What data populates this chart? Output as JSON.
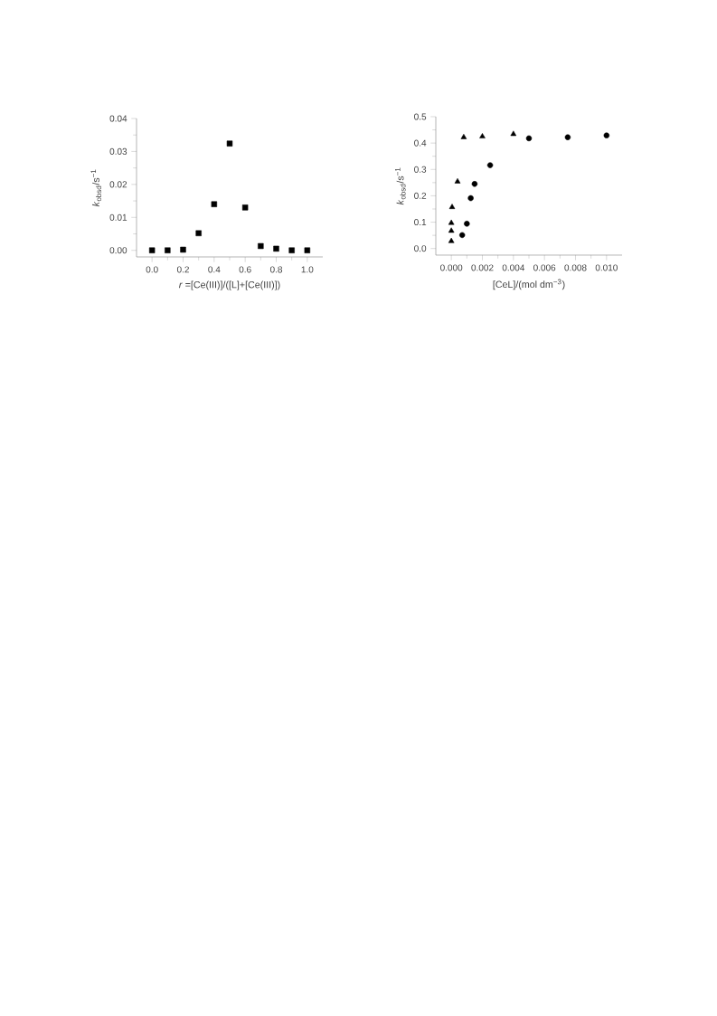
{
  "chart_data": [
    {
      "type": "scatter",
      "xlabel": "*r* =[Ce(III)]/([L]+[Ce(III)])",
      "ylabel": "*k*$_{obsd}$/s$^{−1}$",
      "xlim": [
        -0.1,
        1.1
      ],
      "ylim": [
        -0.002,
        0.04
      ],
      "xticks": [
        {
          "value": 0,
          "label": "0.0"
        },
        {
          "value": 0.2,
          "label": "0.2"
        },
        {
          "value": 0.4,
          "label": "0.4"
        },
        {
          "value": 0.6,
          "label": "0.6"
        },
        {
          "value": 0.8,
          "label": "0.8"
        },
        {
          "value": 1,
          "label": "1.0"
        }
      ],
      "yticks": [
        {
          "value": 0,
          "label": "0.00"
        },
        {
          "value": 0.01,
          "label": "0.01"
        },
        {
          "value": 0.02,
          "label": "0.02"
        },
        {
          "value": 0.03,
          "label": "0.03"
        },
        {
          "value": 0.04,
          "label": "0.04"
        }
      ],
      "series": [
        {
          "color": "#000000",
          "marker": "square",
          "x": [
            0,
            0.1,
            0.2,
            0.3,
            0.4,
            0.5,
            0.6,
            0.7,
            0.8,
            0.9,
            1.0
          ],
          "values": [
            0,
            0,
            0.0002,
            0.0052,
            0.014,
            0.0324,
            0.013,
            0.0013,
            0.0005,
            0,
            0
          ]
        }
      ]
    },
    {
      "type": "scatter",
      "xlabel": "[CeL]/(mol dm$^{−3}$)",
      "ylabel": "*k*$_{obsd}$/s$^{−1}$",
      "xlim": [
        -0.001,
        0.011
      ],
      "ylim": [
        -0.025,
        0.5
      ],
      "xticks": [
        {
          "value": 0,
          "label": "0.000"
        },
        {
          "value": 0.002,
          "label": "0.002"
        },
        {
          "value": 0.004,
          "label": "0.004"
        },
        {
          "value": 0.006,
          "label": "0.006"
        },
        {
          "value": 0.008,
          "label": "0.008"
        },
        {
          "value": 0.01,
          "label": "0.010"
        }
      ],
      "yticks": [
        {
          "value": 0,
          "label": "0.0"
        },
        {
          "value": 0.1,
          "label": "0.1"
        },
        {
          "value": 0.2,
          "label": "0.2"
        },
        {
          "value": 0.3,
          "label": "0.3"
        },
        {
          "value": 0.4,
          "label": "0.4"
        },
        {
          "value": 0.5,
          "label": "0.5"
        }
      ],
      "series": [
        {
          "color": "#000000",
          "marker": "triangle",
          "x": [
            0,
            0,
            0,
            5e-05,
            0.0004,
            0.0008,
            0.002,
            0.004
          ],
          "values": [
            0.028,
            0.067,
            0.097,
            0.157,
            0.254,
            0.422,
            0.425,
            0.434
          ]
        },
        {
          "color": "#000000",
          "marker": "circle",
          "x": [
            0.0007,
            0.001,
            0.00125,
            0.0015,
            0.0025,
            0.005,
            0.0075,
            0.01
          ],
          "values": [
            0.051,
            0.094,
            0.191,
            0.245,
            0.316,
            0.418,
            0.422,
            0.429
          ]
        }
      ]
    }
  ]
}
